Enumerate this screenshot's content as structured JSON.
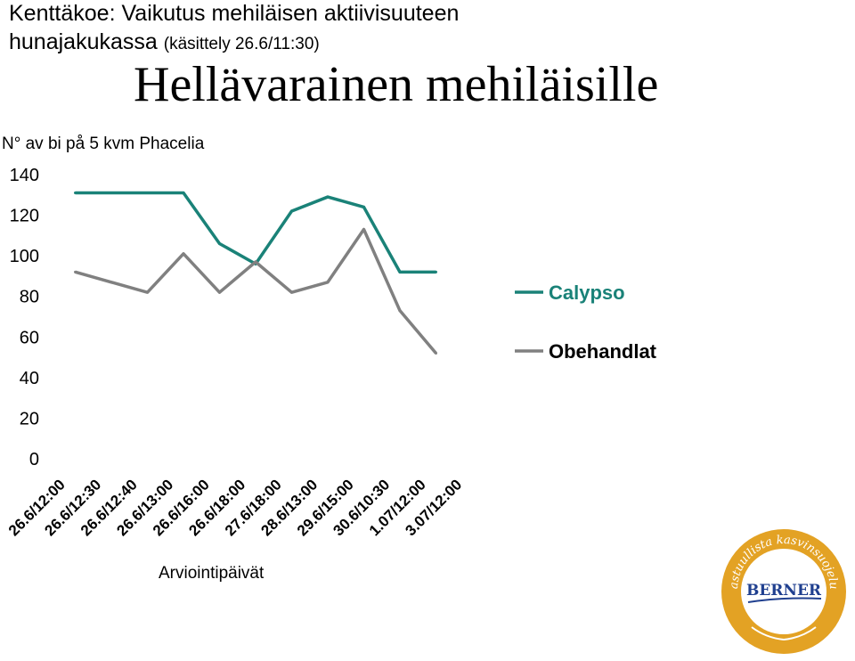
{
  "header": {
    "title_line1": "Kenttäkoe: Vaikutus mehiläisen aktiivisuuteen",
    "title_line2": "hunajakukassa",
    "title_paren": "(käsittely 26.6/11:30)",
    "headline": "Hellävarainen mehiläisille"
  },
  "logo": {
    "seal_text": "Vastuullista kasvinsuojelua",
    "brand": "BERNER"
  },
  "colors": {
    "calypso": "#1a8278",
    "obehandlat": "#808080",
    "seal_gold": "#e3a224",
    "seal_inner": "#ffffff",
    "brand_blue": "#1f3f8f"
  },
  "chart_data": {
    "type": "line",
    "ylabel": "N° av bi på 5 kvm Phacelia",
    "xlabel": "Arviointipäivät",
    "ylim": [
      0,
      140
    ],
    "yticks": [
      0,
      20,
      40,
      60,
      80,
      100,
      120,
      140
    ],
    "categories": [
      "26.6/12:00",
      "26.6/12:30",
      "26.6/12:40",
      "26.6/13:00",
      "26.6/16:00",
      "26.6/18:00",
      "27.6/18:00",
      "28.6/13:00",
      "29.6/15:00",
      "30.6/10:30",
      "1.07/12:00",
      "3.07/12:00"
    ],
    "legend_position": "right",
    "grid": false,
    "series": [
      {
        "name": "Calypso",
        "color": "#1a8278",
        "values": [
          null,
          131,
          131,
          131,
          131,
          106,
          96,
          122,
          129,
          124,
          92,
          92
        ]
      },
      {
        "name": "Obehandlat",
        "color": "#808080",
        "values": [
          null,
          92,
          87,
          82,
          101,
          82,
          97,
          82,
          87,
          113,
          73,
          52
        ]
      }
    ]
  }
}
